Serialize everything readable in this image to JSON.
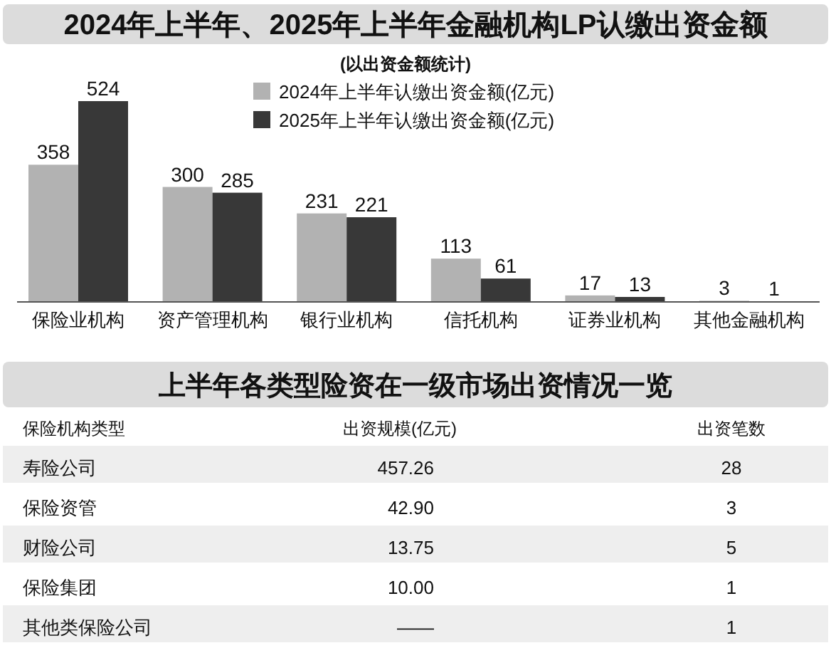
{
  "chart_data": [
    {
      "type": "bar",
      "title": "2024年上半年、2025年上半年金融机构LP认缴出资金额",
      "subtitle": "(以出资金额统计)",
      "categories": [
        "保险业机构",
        "资产管理机构",
        "银行业机构",
        "信托机构",
        "证券业机构",
        "其他金融机构"
      ],
      "series": [
        {
          "name": "2024年上半年认缴出资金额(亿元)",
          "color": "#b2b2b2",
          "values": [
            358,
            300,
            231,
            113,
            17,
            3
          ]
        },
        {
          "name": "2025年上半年认缴出资金额(亿元)",
          "color": "#383838",
          "values": [
            524,
            285,
            221,
            61,
            13,
            1
          ]
        }
      ],
      "data_labels": true,
      "legend": "top"
    },
    {
      "type": "other",
      "title": "上半年各类型险资在一级市场出资情况一览",
      "annotations": [
        "保险机构类型",
        "出资规模(亿元)",
        "出资笔数",
        "寿险公司",
        "457.26",
        "28",
        "保险资管",
        "42.90",
        "3",
        "财险公司",
        "13.75",
        "5",
        "保险集团",
        "10.00",
        "1",
        "其他类保险公司",
        "——",
        "1"
      ]
    }
  ]
}
